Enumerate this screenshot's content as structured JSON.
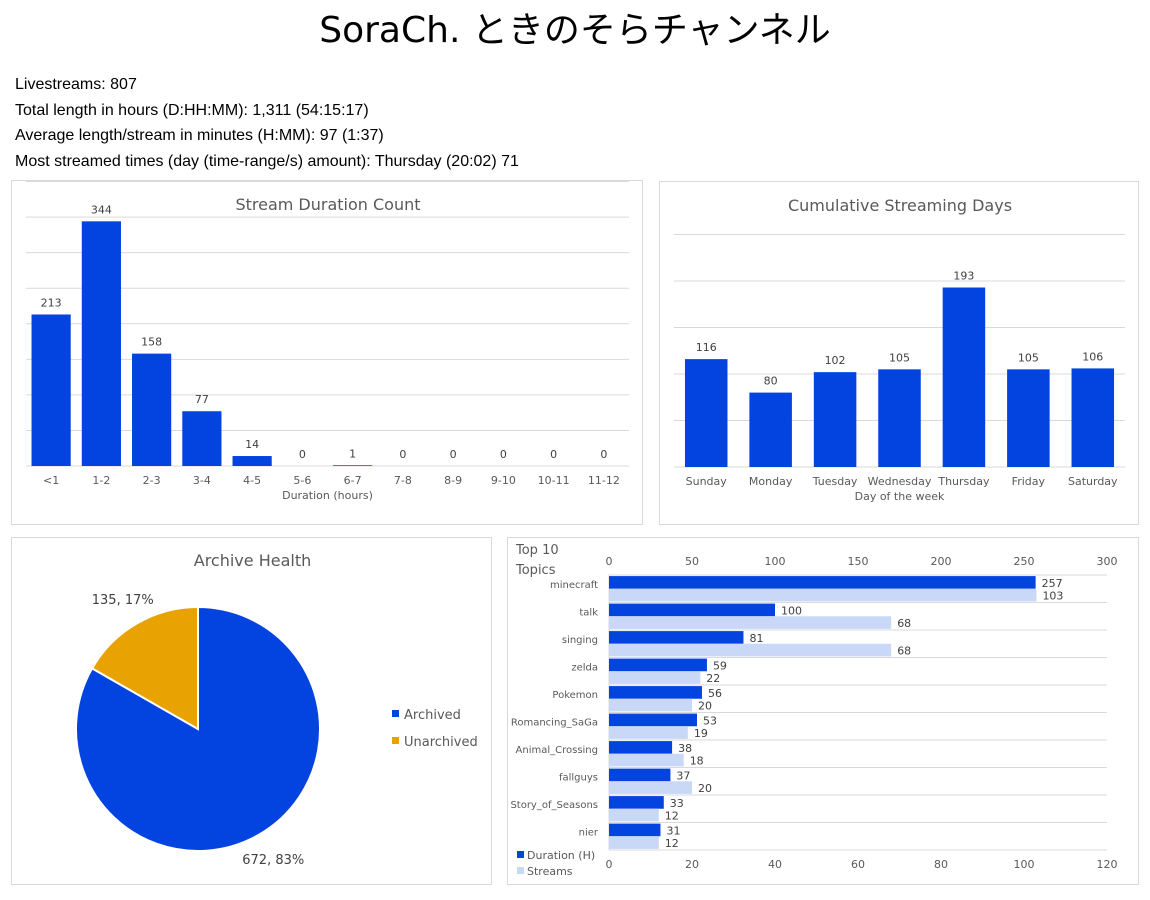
{
  "header": {
    "title": "SoraCh. ときのそらチャンネル",
    "stats": [
      "Livestreams: 807",
      "Total length in hours (D:HH:MM): 1,311 (54:15:17)",
      "Average length/stream in minutes (H:MM): 97 (1:37)",
      "Most streamed times (day (time-range/s) amount): Thursday (20:02) 71"
    ]
  },
  "colors": {
    "primary": "#0343DF",
    "secondary": "#C9D8F7",
    "unarchived": "#E8A202",
    "gridline": "#D9D9D9",
    "panel_border": "#D9D9D9",
    "label_text": "#595959"
  },
  "chart_data": [
    {
      "id": "duration",
      "type": "bar",
      "title": "Stream Duration Count",
      "xlabel": "Duration (hours)",
      "ylabel": "",
      "categories": [
        "<1",
        "1-2",
        "2-3",
        "3-4",
        "4-5",
        "5-6",
        "6-7",
        "7-8",
        "8-9",
        "9-10",
        "10-11",
        "11-12"
      ],
      "values": [
        213,
        344,
        158,
        77,
        14,
        0,
        1,
        0,
        0,
        0,
        0,
        0
      ],
      "ylim": [
        0,
        400
      ],
      "grid": true,
      "data_labels": true
    },
    {
      "id": "days",
      "type": "bar",
      "title": "Cumulative Streaming Days",
      "xlabel": "Day of the week",
      "ylabel": "",
      "categories": [
        "Sunday",
        "Monday",
        "Tuesday",
        "Wednesday",
        "Thursday",
        "Friday",
        "Saturday"
      ],
      "values": [
        116,
        80,
        102,
        105,
        193,
        105,
        106
      ],
      "ylim": [
        0,
        250
      ],
      "grid": true,
      "data_labels": true
    },
    {
      "id": "archive",
      "type": "pie",
      "title": "Archive Health",
      "categories": [
        "Archived",
        "Unarchived"
      ],
      "values": [
        672,
        135
      ],
      "percent_labels": [
        "83%",
        "17%"
      ],
      "legend": "right"
    },
    {
      "id": "topics",
      "type": "bar",
      "orientation": "horizontal",
      "title": "Top 10 Topics",
      "categories": [
        "minecraft",
        "talk",
        "singing",
        "zelda",
        "Pokemon",
        "Romancing_SaGa",
        "Animal_Crossing",
        "fallguys",
        "Story_of_Seasons",
        "nier"
      ],
      "series": [
        {
          "name": "Duration (H)",
          "axis": "top",
          "values": [
            257,
            100,
            81,
            59,
            56,
            53,
            38,
            37,
            33,
            31
          ]
        },
        {
          "name": "Streams",
          "axis": "bottom",
          "values": [
            103,
            68,
            68,
            22,
            20,
            19,
            18,
            20,
            12,
            12
          ]
        }
      ],
      "top_axis": {
        "range": [
          0,
          300
        ],
        "ticks": [
          "0",
          "50",
          "100",
          "150",
          "200",
          "250",
          "300"
        ]
      },
      "bottom_axis": {
        "range": [
          0,
          120
        ],
        "ticks": [
          "0",
          "20",
          "40",
          "60",
          "80",
          "100",
          "120"
        ]
      },
      "legend": "bottom-left",
      "grid": true,
      "data_labels": true
    }
  ]
}
